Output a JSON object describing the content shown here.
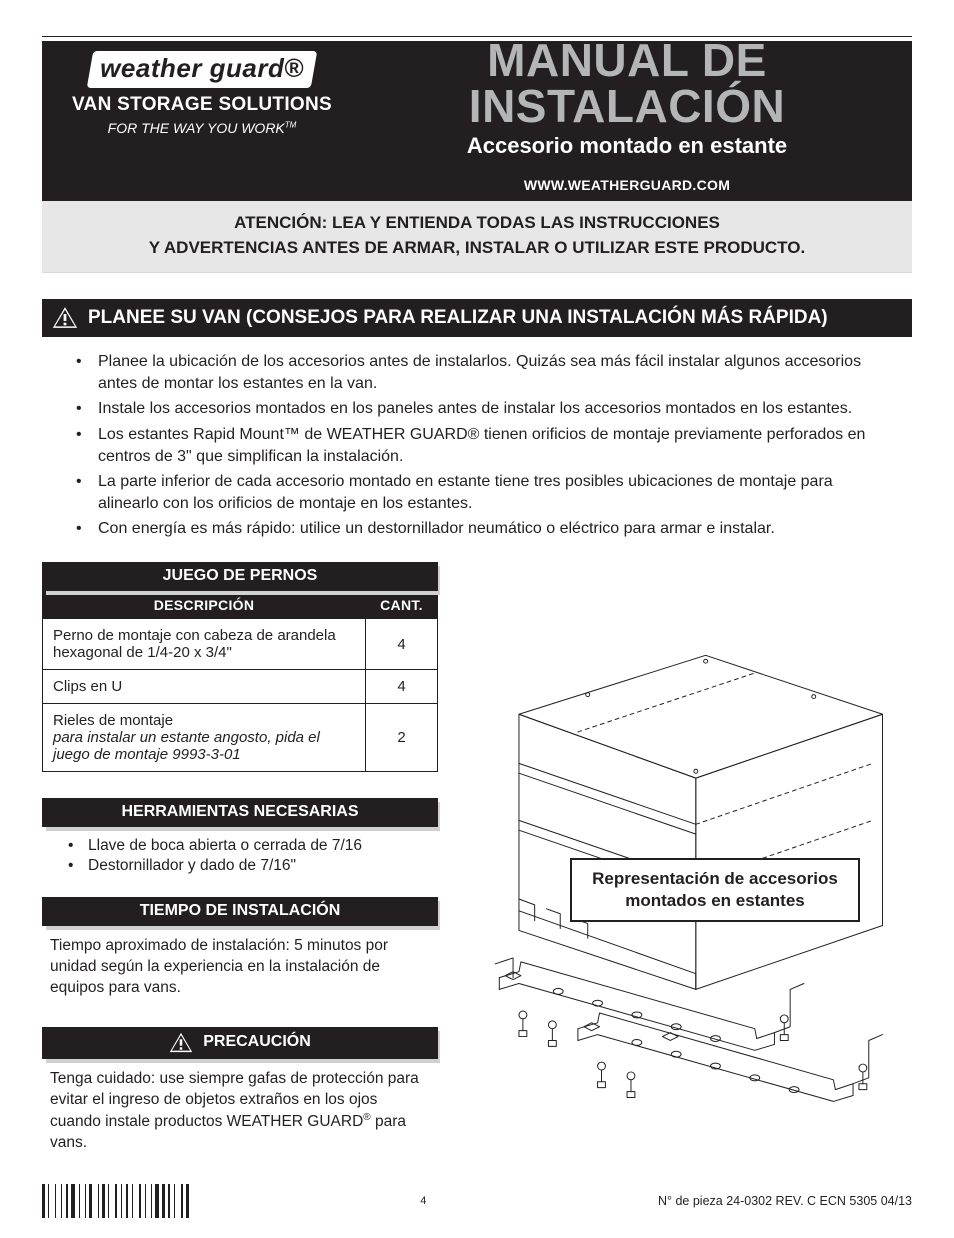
{
  "header": {
    "logo_text": "weather guard",
    "logo_reg": "®",
    "vss": "VAN STORAGE SOLUTIONS",
    "tagline": "FOR THE WAY YOU WORK",
    "tagline_tm": "TM",
    "title": "MANUAL DE INSTALACIÓN",
    "subtitle": "Accesorio montado en estante",
    "url": "WWW.WEATHERGUARD.COM",
    "colors": {
      "bar": "#231f20",
      "title_gray": "#b4b5b7"
    }
  },
  "attention": {
    "line1": "ATENCIÓN: LEA Y ENTIENDA TODAS LAS INSTRUCCIONES",
    "line2": "Y ADVERTENCIAS ANTES DE ARMAR, INSTALAR O UTILIZAR ESTE PRODUCTO."
  },
  "plan": {
    "heading": "PLANEE SU VAN (CONSEJOS PARA REALIZAR UNA INSTALACIÓN MÁS RÁPIDA)",
    "tips": [
      "Planee la ubicación de los accesorios antes de instalarlos. Quizás sea más fácil instalar algunos accesorios antes de montar los estantes en la van.",
      "Instale los accesorios montados en los paneles antes de instalar los accesorios montados en los estantes.",
      "Los estantes Rapid Mount™ de WEATHER GUARD® tienen orificios de montaje previamente perforados en centros de 3\" que simplifican la instalación.",
      "La parte inferior de cada accesorio montado en estante tiene tres posibles ubicaciones de montaje para alinearlo con los orificios de montaje en los estantes.",
      "Con energía es más rápido: utilice un destornillador neumático o eléctrico para armar e instalar."
    ]
  },
  "bolt_table": {
    "title": "JUEGO DE PERNOS",
    "col_desc": "DESCRIPCIÓN",
    "col_qty": "CANT.",
    "rows": [
      {
        "desc": "Perno de montaje con cabeza de arandela hexagonal de 1/4-20 x 3/4\"",
        "qty": "4"
      },
      {
        "desc": "Clips en U",
        "qty": "4"
      },
      {
        "desc_main": "Rieles de montaje",
        "desc_ital": "para instalar un estante angosto, pida el juego de montaje 9993-3-01",
        "qty": "2"
      }
    ]
  },
  "tools": {
    "title": "HERRAMIENTAS NECESARIAS",
    "items": [
      "Llave de boca abierta o cerrada de 7/16",
      "Destornillador y dado de 7/16\""
    ]
  },
  "time": {
    "title": "TIEMPO DE INSTALACIÓN",
    "text": "Tiempo aproximado de instalación: 5 minutos por unidad según la experiencia en la instalación de equipos para vans."
  },
  "caution": {
    "title": "PRECAUCIÓN",
    "text_pre": "Tenga cuidado: use siempre gafas de protección para evitar el ingreso de objetos extraños en los ojos cuando instale productos WEATHER GUARD",
    "reg": "®",
    "text_post": " para vans."
  },
  "figure": {
    "label": "Representación de accesorios montados en estantes",
    "stroke": "#231f20",
    "stroke_width": 1
  },
  "footer": {
    "page": "4",
    "rev": "N° de pieza 24-0302 REV. C ECN 5305 04/13",
    "barcode_widths": [
      2,
      1,
      1,
      3,
      1,
      2,
      1,
      1,
      2,
      1,
      3,
      1,
      1,
      2,
      1,
      1,
      2,
      3,
      1,
      1,
      2,
      1,
      1,
      3,
      1,
      2,
      1,
      1,
      2,
      1,
      1,
      3,
      2,
      1,
      1,
      2,
      1,
      1,
      3,
      1,
      2,
      1,
      1,
      2,
      1,
      3,
      1,
      1,
      2
    ]
  }
}
